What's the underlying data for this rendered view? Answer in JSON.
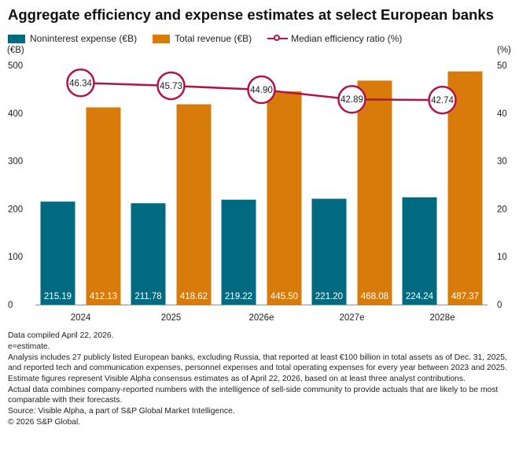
{
  "title": "Aggregate efficiency and expense estimates at select European banks",
  "colors": {
    "expense": "#006A80",
    "revenue": "#D87B0A",
    "ratio": "#B0144B",
    "grid": "#D9D9D9",
    "axis": "#8C8C8C"
  },
  "chart_data": {
    "type": "bar",
    "categories": [
      "2024",
      "2025",
      "2026e",
      "2027e",
      "2028e"
    ],
    "series": [
      {
        "name": "Noninterest expense (€B)",
        "type": "bar",
        "axis": "left",
        "values": [
          215.19,
          211.78,
          219.22,
          221.2,
          224.24
        ],
        "labels": [
          "215.19",
          "211.78",
          "219.22",
          "221.20",
          "224.24"
        ]
      },
      {
        "name": "Total revenue (€B)",
        "type": "bar",
        "axis": "left",
        "values": [
          412.13,
          418.62,
          445.5,
          468.08,
          487.37
        ],
        "labels": [
          "412.13",
          "418.62",
          "445.50",
          "468.08",
          "487.37"
        ]
      },
      {
        "name": "Median efficiency ratio (%)",
        "type": "line",
        "axis": "right",
        "values": [
          46.34,
          45.73,
          44.9,
          42.89,
          42.74
        ],
        "labels": [
          "46.34",
          "45.73",
          "44.90",
          "42.89",
          "42.74"
        ]
      }
    ],
    "y_left": {
      "label": "(€B)",
      "ylim": [
        0,
        500
      ],
      "ticks": [
        "0",
        "100",
        "200",
        "300",
        "400",
        "500"
      ]
    },
    "y_right": {
      "label": "(%)",
      "ylim": [
        0,
        50
      ],
      "ticks": [
        "0",
        "10",
        "20",
        "30",
        "40",
        "50"
      ]
    },
    "grid": false,
    "legend": "top-left"
  },
  "notes": [
    "Data compiled April 22, 2026.",
    "e=estimate.",
    "Analysis includes 27 publicly listed European banks, excluding Russia, that reported at least €100 billion in total assets as of Dec. 31, 2025, and reported tech and communication expenses, personnel expenses and total operating expenses for every year between 2023 and 2025.",
    "Estimate figures represent Visible Alpha consensus estimates as of April 22, 2026, based on at least three analyst contributions.",
    "Actual data combines company-reported numbers with the intelligence of sell-side community to provide actuals that are likely to be most comparable with their forecasts.",
    "Source: Visible Alpha, a part of S&P Global Market Intelligence.",
    "© 2026 S&P Global."
  ]
}
